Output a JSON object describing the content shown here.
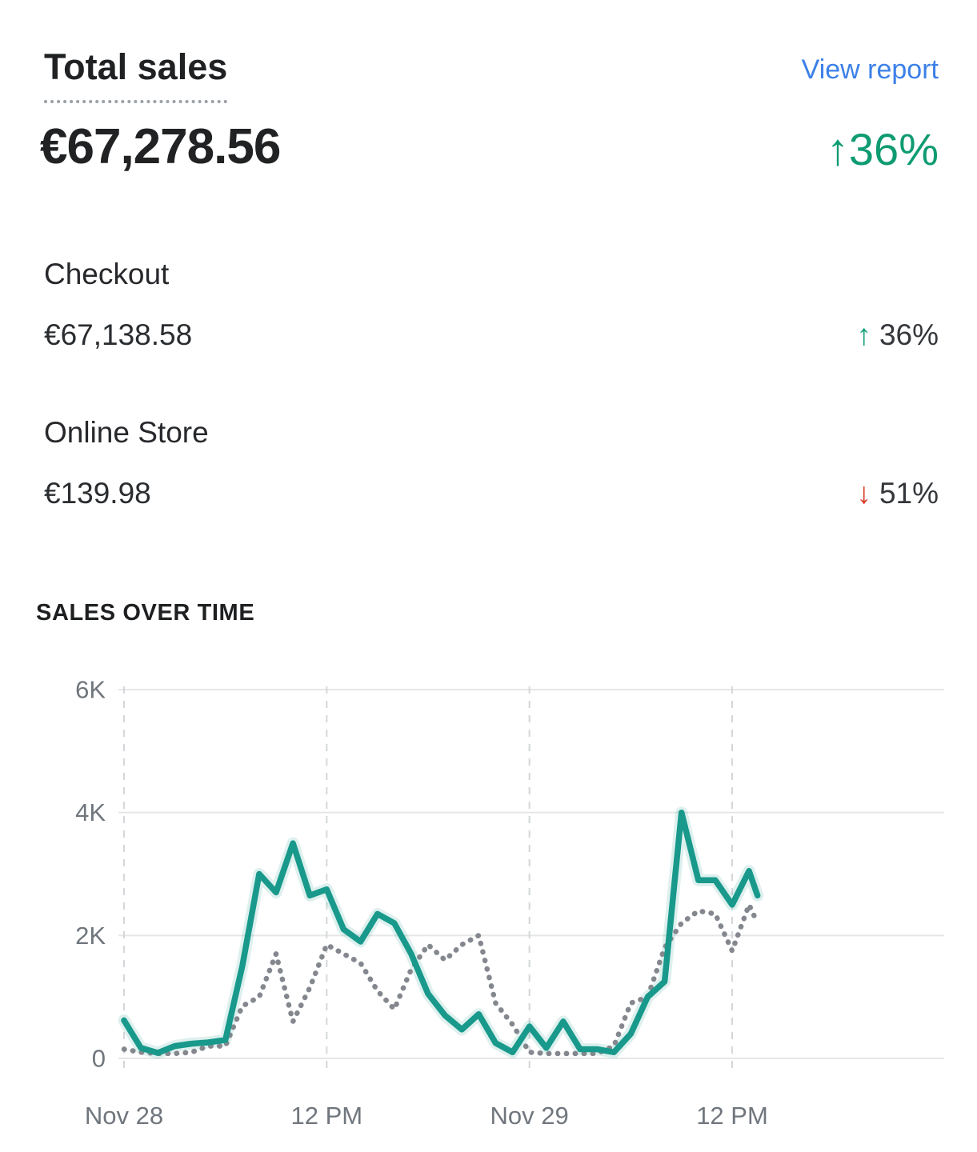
{
  "header": {
    "title": "Total sales",
    "link_label": "View report"
  },
  "summary": {
    "value": "€67,278.56",
    "delta_arrow": "↑",
    "delta": "36%",
    "delta_direction": "up"
  },
  "breakdown": [
    {
      "label": "Checkout",
      "value": "€67,138.58",
      "arrow": "↑",
      "delta": "36%",
      "direction": "up"
    },
    {
      "label": "Online Store",
      "value": "€139.98",
      "arrow": "↓",
      "delta": "51%",
      "direction": "down"
    }
  ],
  "chart": {
    "title": "SALES OVER TIME"
  },
  "chart_data": {
    "type": "line",
    "title": "SALES OVER TIME",
    "x_unit": "hours since Nov 28 12 AM",
    "ylim": [
      0,
      6000
    ],
    "grid": "horizontal solid gridlines, vertical dashed gridlines at x ticks",
    "legend": "none",
    "yticks": [
      {
        "label": "0",
        "value": 0
      },
      {
        "label": "2K",
        "value": 2000
      },
      {
        "label": "4K",
        "value": 4000
      },
      {
        "label": "6K",
        "value": 6000
      }
    ],
    "xticks": [
      {
        "label": "Nov 28",
        "hour": 0
      },
      {
        "label": "12 PM",
        "hour": 12
      },
      {
        "label": "Nov 29",
        "hour": 24
      },
      {
        "label": "12 PM",
        "hour": 36
      }
    ],
    "x_hours": [
      0,
      1,
      2,
      3,
      4,
      5,
      6,
      7,
      8,
      9,
      10,
      11,
      12,
      13,
      14,
      15,
      16,
      17,
      18,
      19,
      20,
      21,
      22,
      23,
      24,
      25,
      26,
      27,
      28,
      29,
      30,
      31,
      32,
      33,
      34,
      35,
      36,
      37,
      37.5
    ],
    "series": [
      {
        "name": "current-period",
        "style": "solid",
        "color": "#18998b",
        "values": [
          620,
          170,
          90,
          200,
          240,
          260,
          300,
          1500,
          3000,
          2700,
          3500,
          2650,
          2750,
          2100,
          1900,
          2350,
          2200,
          1700,
          1050,
          700,
          470,
          720,
          250,
          100,
          520,
          170,
          600,
          150,
          150,
          100,
          400,
          1000,
          1250,
          4000,
          2900,
          2900,
          2500,
          3050,
          2650
        ]
      },
      {
        "name": "previous-period",
        "style": "dotted",
        "color": "#84888e",
        "values": [
          150,
          100,
          80,
          80,
          100,
          200,
          200,
          850,
          1000,
          1700,
          600,
          1150,
          1850,
          1700,
          1550,
          1100,
          800,
          1450,
          1850,
          1600,
          1850,
          2000,
          900,
          550,
          100,
          80,
          80,
          80,
          80,
          200,
          900,
          1000,
          1800,
          2200,
          2400,
          2350,
          1750,
          2500,
          2200
        ]
      }
    ]
  },
  "colors": {
    "link_blue": "#3c80e8",
    "positive_green": "#0f9b72",
    "arrow_up_green": "#16a07a",
    "arrow_down_red": "#d93a26",
    "line_teal": "#18998b",
    "line_gray": "#84888e",
    "gridline": "#e5e6e8",
    "dashed_gridline": "#d4d7da",
    "axis_text": "#70767d"
  }
}
